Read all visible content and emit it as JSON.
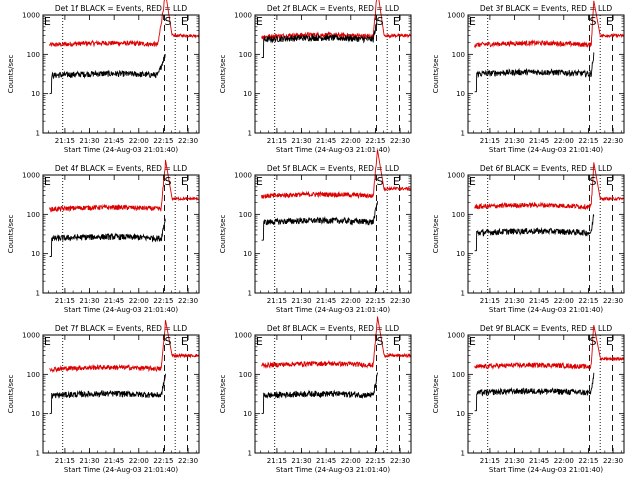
{
  "chart_data": {
    "type": "line",
    "x_label": "Start Time (24-Aug-03 21:01:40)",
    "y_label": "Counts/sec",
    "y_scale": "log",
    "ylim": [
      1,
      1000
    ],
    "y_ticks": [
      "1",
      "10",
      "100",
      "1000"
    ],
    "x_range_minutes": [
      0,
      95
    ],
    "x_ticks": [
      {
        "label": "21:15",
        "t": 13.33
      },
      {
        "label": "21:30",
        "t": 28.33
      },
      {
        "label": "21:45",
        "t": 43.33
      },
      {
        "label": "22:00",
        "t": 58.33
      },
      {
        "label": "22:15",
        "t": 73.33
      },
      {
        "label": "22:30",
        "t": 88.33
      }
    ],
    "markers": [
      {
        "label": "E",
        "t": 0.5
      },
      {
        "label": "S",
        "t": 74
      },
      {
        "label": "E",
        "t": 84
      }
    ],
    "series_names": [
      "BLACK = Events",
      "RED = LLD"
    ],
    "series_colors": {
      "events": "#000000",
      "lld": "#dd0000"
    },
    "panels": [
      {
        "title": "Det 1f BLACK = Events, RED = LLD",
        "events_level": 30,
        "lld_level": 180,
        "rise_end": 70,
        "spike_end": 75,
        "lld_after": 300,
        "dotted": [
          12,
          80.5
        ],
        "dashed": [
          74,
          88
        ]
      },
      {
        "title": "Det 2f BLACK = Events, RED = LLD",
        "events_level": 245,
        "lld_level": 290,
        "rise_end": 72,
        "spike_end": 75,
        "lld_after": 300,
        "dotted": [
          12,
          80.5
        ],
        "dashed": [
          74,
          88
        ]
      },
      {
        "title": "Det 3f BLACK = Events, RED = LLD",
        "events_level": 33,
        "lld_level": 180,
        "rise_end": 75,
        "spike_end": 77,
        "lld_after": 300,
        "dotted": [
          12,
          80.5
        ],
        "dashed": [
          74,
          88
        ]
      },
      {
        "title": "Det 4f BLACK = Events, RED = LLD",
        "events_level": 25,
        "lld_level": 140,
        "rise_end": 72,
        "spike_end": 75,
        "lld_after": 250,
        "dotted": [
          12,
          80.5
        ],
        "dashed": [
          74,
          88
        ]
      },
      {
        "title": "Det 5f BLACK = Events, RED = LLD",
        "events_level": 65,
        "lld_level": 300,
        "rise_end": 72,
        "spike_end": 75,
        "lld_after": 450,
        "dotted": [
          12,
          80.5
        ],
        "dashed": [
          74,
          88
        ]
      },
      {
        "title": "Det 6f BLACK = Events, RED = LLD",
        "events_level": 35,
        "lld_level": 160,
        "rise_end": 75,
        "spike_end": 77,
        "lld_after": 250,
        "dotted": [
          12,
          80.5
        ],
        "dashed": [
          74,
          88
        ]
      },
      {
        "title": "Det 7f BLACK = Events, RED = LLD",
        "events_level": 30,
        "lld_level": 140,
        "rise_end": 72,
        "spike_end": 75,
        "lld_after": 300,
        "dotted": [
          12,
          80.5
        ],
        "dashed": [
          74,
          88
        ]
      },
      {
        "title": "Det 8f BLACK = Events, RED = LLD",
        "events_level": 30,
        "lld_level": 175,
        "rise_end": 72,
        "spike_end": 75,
        "lld_after": 300,
        "dotted": [
          12,
          80.5
        ],
        "dashed": [
          74,
          88
        ]
      },
      {
        "title": "Det 9f BLACK = Events, RED = LLD",
        "events_level": 35,
        "lld_level": 160,
        "rise_end": 75,
        "spike_end": 77,
        "lld_after": 250,
        "dotted": [
          12,
          80.5
        ],
        "dashed": [
          74,
          88
        ]
      }
    ]
  }
}
